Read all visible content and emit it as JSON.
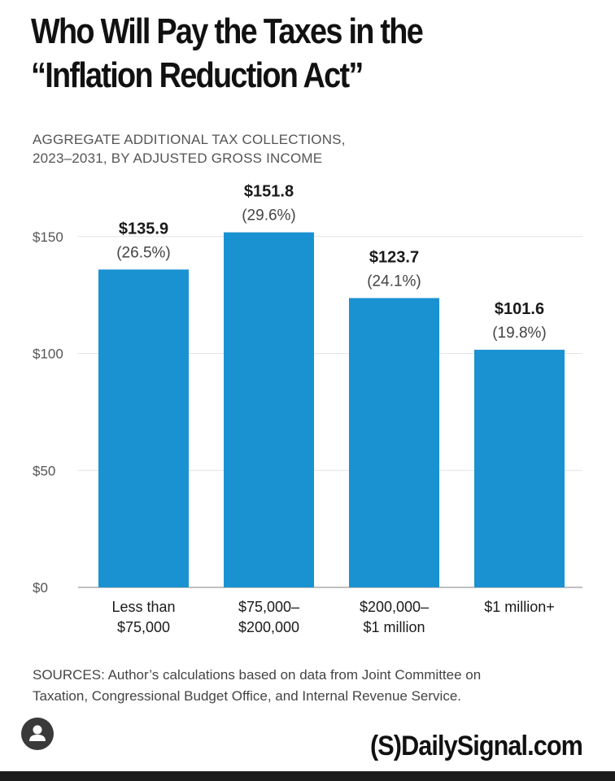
{
  "header": {
    "title_line1": "Who Will Pay the Taxes in the",
    "title_line2": "“Inflation Reduction Act”",
    "subtitle_line1": "AGGREGATE ADDITIONAL TAX COLLECTIONS,",
    "subtitle_line2": "2023–2031, BY ADJUSTED GROSS INCOME"
  },
  "chart_data": {
    "type": "bar",
    "categories": [
      [
        "Less than",
        "$75,000"
      ],
      [
        "$75,000–",
        "$200,000"
      ],
      [
        "$200,000–",
        "$1 million"
      ],
      [
        "$1 million+"
      ]
    ],
    "values": [
      135.9,
      151.8,
      123.7,
      101.6
    ],
    "value_labels": [
      "$135.9",
      "$151.8",
      "$123.7",
      "$101.6"
    ],
    "percent_labels": [
      "(26.5%)",
      "(29.6%)",
      "(24.1%)",
      "(19.8%)"
    ],
    "y_ticks": [
      0,
      50,
      100,
      150
    ],
    "y_tick_labels": [
      "$0",
      "$50",
      "$100",
      "$150"
    ],
    "ylim": [
      0,
      152
    ],
    "grid": true,
    "bar_color": "#1a92d2"
  },
  "footer": {
    "sources_line1": "SOURCES: Author’s calculations based on data from Joint Committee on",
    "sources_line2": "Taxation, Congressional Budget Office, and Internal Revenue Service.",
    "brand": "(S)DailySignal.com",
    "avatar_icon": "user-avatar-icon"
  }
}
